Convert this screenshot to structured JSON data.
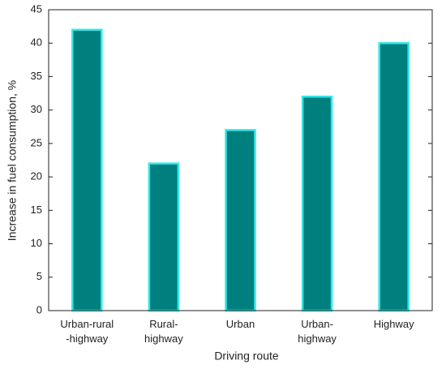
{
  "chart_data": {
    "type": "bar",
    "x_label": "Driving route",
    "y_label": "Increase in fuel consumption, %",
    "categories": [
      "Urban-rural\n-highway",
      null,
      "Rural-\nhighway",
      null,
      "Urban",
      null,
      "Urban-\nhighway",
      null,
      "Highway"
    ],
    "values": [
      42,
      0,
      22,
      0,
      27,
      0,
      32,
      0,
      40
    ],
    "color": "#007f7f",
    "edge_color": "#33e6e6",
    "ylim": [
      0,
      45
    ],
    "yticks": [
      0,
      5,
      10,
      15,
      20,
      25,
      30,
      35,
      40,
      45
    ],
    "grid": false
  }
}
